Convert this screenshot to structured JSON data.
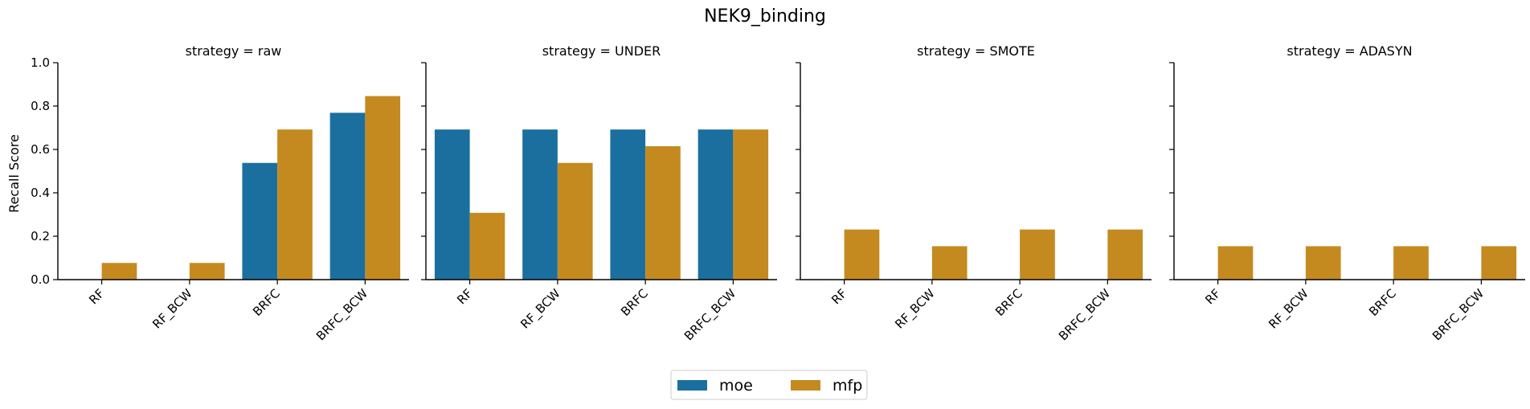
{
  "chart_data": {
    "type": "bar",
    "title": "NEK9_binding",
    "ylabel": "Recall Score",
    "xlabel": "",
    "ylim": [
      0,
      1.0
    ],
    "yticks": [
      "0.0",
      "0.2",
      "0.4",
      "0.6",
      "0.8",
      "1.0"
    ],
    "categories": [
      "RF",
      "RF_BCW",
      "BRFC",
      "BRFC_BCW"
    ],
    "legend": {
      "placement": "bottom-center",
      "entries": [
        {
          "name": "moe",
          "color": "#1a6f9f"
        },
        {
          "name": "mfp",
          "color": "#c48a20"
        }
      ]
    },
    "facets": [
      {
        "title": "strategy = raw",
        "series": [
          {
            "name": "moe",
            "values": [
              0.0,
              0.0,
              0.538,
              0.769
            ]
          },
          {
            "name": "mfp",
            "values": [
              0.077,
              0.077,
              0.692,
              0.846
            ]
          }
        ]
      },
      {
        "title": "strategy = UNDER",
        "series": [
          {
            "name": "moe",
            "values": [
              0.692,
              0.692,
              0.692,
              0.692
            ]
          },
          {
            "name": "mfp",
            "values": [
              0.308,
              0.538,
              0.615,
              0.692
            ]
          }
        ]
      },
      {
        "title": "strategy = SMOTE",
        "series": [
          {
            "name": "moe",
            "values": [
              0.0,
              0.0,
              0.0,
              0.0
            ]
          },
          {
            "name": "mfp",
            "values": [
              0.231,
              0.154,
              0.231,
              0.231
            ]
          }
        ]
      },
      {
        "title": "strategy = ADASYN",
        "series": [
          {
            "name": "moe",
            "values": [
              0.0,
              0.0,
              0.0,
              0.0
            ]
          },
          {
            "name": "mfp",
            "values": [
              0.154,
              0.154,
              0.154,
              0.154
            ]
          }
        ]
      }
    ]
  }
}
